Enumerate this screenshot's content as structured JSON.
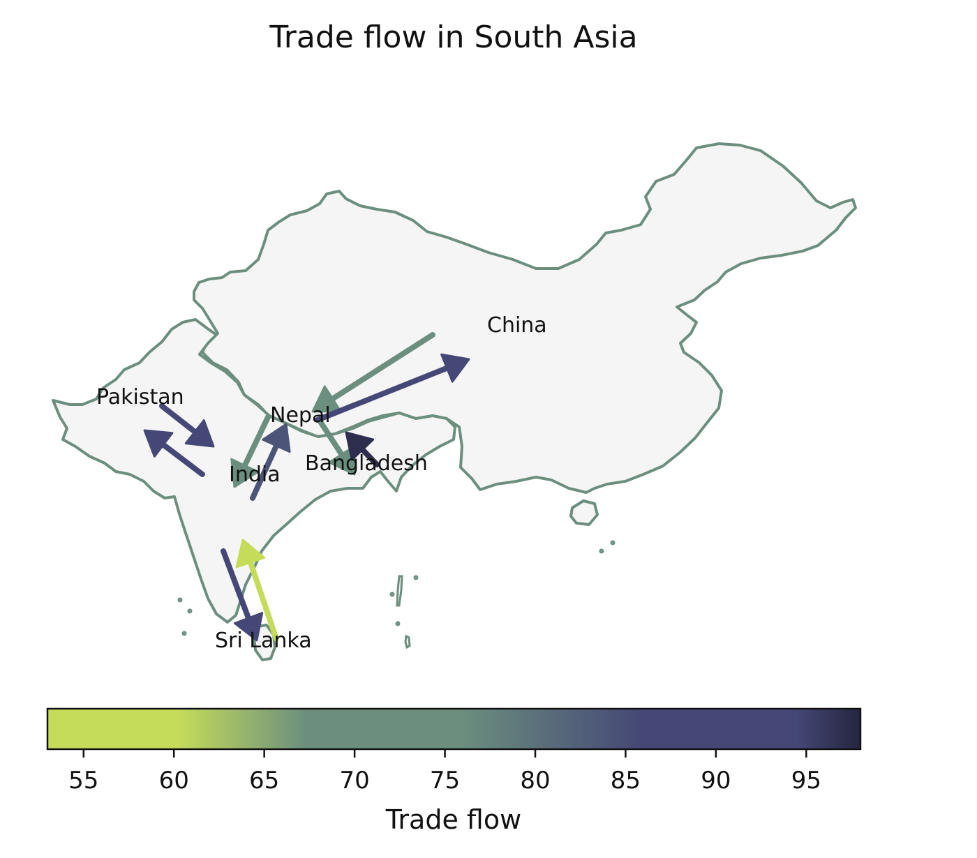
{
  "title": "Trade flow in South Asia",
  "chart_data": {
    "type": "flow-map",
    "title": "Trade flow in South Asia",
    "countries": [
      {
        "name": "China"
      },
      {
        "name": "Pakistan"
      },
      {
        "name": "Nepal"
      },
      {
        "name": "India"
      },
      {
        "name": "Bangladesh"
      },
      {
        "name": "Sri Lanka"
      }
    ],
    "flows": [
      {
        "from": "China",
        "to": "Nepal",
        "value": 73
      },
      {
        "from": "Nepal",
        "to": "China",
        "value": 88
      },
      {
        "from": "Pakistan",
        "to": "India",
        "value": 88
      },
      {
        "from": "India",
        "to": "Pakistan",
        "value": 88
      },
      {
        "from": "Nepal",
        "to": "India",
        "value": 72
      },
      {
        "from": "India",
        "to": "Nepal",
        "value": 84
      },
      {
        "from": "Nepal",
        "to": "Bangladesh",
        "value": 72
      },
      {
        "from": "Bangladesh",
        "to": "Nepal",
        "value": 97
      },
      {
        "from": "India",
        "to": "Sri Lanka",
        "value": 88
      },
      {
        "from": "Sri Lanka",
        "to": "India",
        "value": 56
      }
    ],
    "colorbar": {
      "label": "Trade flow",
      "range": [
        53,
        98
      ],
      "ticks": [
        55,
        60,
        65,
        70,
        75,
        80,
        85,
        90,
        95
      ],
      "colors": [
        "#c5dc5a",
        "#6b8e7e",
        "#454876",
        "#252540"
      ]
    }
  }
}
